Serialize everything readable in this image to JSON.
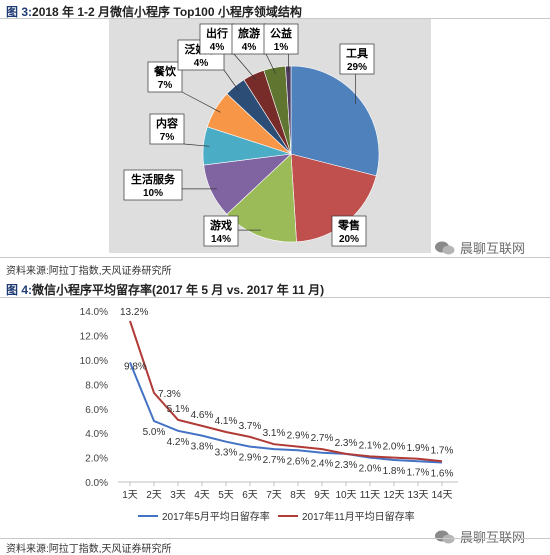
{
  "fig3": {
    "title_prefix": "图 3:",
    "title": "2018 年 1-2 月微信小程序 Top100 小程序领域结构",
    "source": "资料来源:阿拉丁指数,天风证券研究所"
  },
  "fig4": {
    "title_prefix": "图 4:",
    "title": "微信小程序平均留存率(2017 年 5 月 vs. 2017 年 11 月)",
    "source": "资料来源:阿拉丁指数,天风证券研究所"
  },
  "watermark": "晨聊互联网",
  "chart_data": [
    {
      "type": "pie",
      "title": "2018 年 1-2 月微信小程序 Top100 小程序领域结构",
      "slices": [
        {
          "label": "工具",
          "pct_label": "29%",
          "value": 29,
          "color": "#4f81bd"
        },
        {
          "label": "零售",
          "pct_label": "20%",
          "value": 20,
          "color": "#c0504d"
        },
        {
          "label": "游戏",
          "pct_label": "14%",
          "value": 14,
          "color": "#9bbb59"
        },
        {
          "label": "生活服务",
          "pct_label": "10%",
          "value": 10,
          "color": "#8064a2"
        },
        {
          "label": "内容",
          "pct_label": "7%",
          "value": 7,
          "color": "#4bacc6"
        },
        {
          "label": "餐饮",
          "pct_label": "7%",
          "value": 7,
          "color": "#f79646"
        },
        {
          "label": "泛娱乐",
          "pct_label": "4%",
          "value": 4,
          "color": "#2c4d75"
        },
        {
          "label": "出行",
          "pct_label": "4%",
          "value": 4,
          "color": "#772c2a"
        },
        {
          "label": "旅游",
          "pct_label": "4%",
          "value": 4,
          "color": "#5f7530"
        },
        {
          "label": "公益",
          "pct_label": "1%",
          "value": 1,
          "color": "#4d3b62"
        }
      ]
    },
    {
      "type": "line",
      "title": "微信小程序平均留存率(2017 年 5 月 vs. 2017 年 11 月)",
      "categories": [
        "1天",
        "2天",
        "3天",
        "4天",
        "5天",
        "6天",
        "7天",
        "8天",
        "9天",
        "10天",
        "11天",
        "12天",
        "13天",
        "14天"
      ],
      "ylim": [
        0,
        14
      ],
      "yticks": [
        "0.0%",
        "2.0%",
        "4.0%",
        "6.0%",
        "8.0%",
        "10.0%",
        "12.0%",
        "14.0%"
      ],
      "grid": false,
      "legend": "bottom",
      "series": [
        {
          "name": "2017年5月平均日留存率",
          "color": "#4472c4",
          "values": [
            9.8,
            5.0,
            4.2,
            3.8,
            3.3,
            2.9,
            2.7,
            2.6,
            2.4,
            2.3,
            2.0,
            1.8,
            1.7,
            1.6
          ],
          "labels": [
            "9.8%",
            "5.0%",
            "4.2%",
            "3.8%",
            "3.3%",
            "2.9%",
            "2.7%",
            "2.6%",
            "2.4%",
            "2.3%",
            "2.0%",
            "1.8%",
            "1.7%",
            "1.6%"
          ]
        },
        {
          "name": "2017年11月平均日留存率",
          "color": "#b03a36",
          "values": [
            13.2,
            7.3,
            5.1,
            4.6,
            4.1,
            3.7,
            3.1,
            2.9,
            2.7,
            2.3,
            2.1,
            2.0,
            1.9,
            1.7
          ],
          "labels": [
            "13.2%",
            "7.3%",
            "5.1%",
            "4.6%",
            "4.1%",
            "3.7%",
            "3.1%",
            "2.9%",
            "2.7%",
            "2.3%",
            "2.1%",
            "2.0%",
            "1.9%",
            "1.7%"
          ]
        }
      ]
    }
  ]
}
